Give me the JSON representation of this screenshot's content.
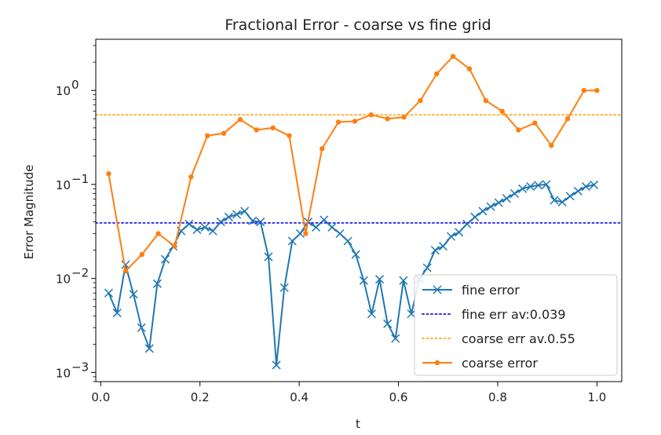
{
  "chart_data": {
    "type": "line",
    "title": "Fractional Error - coarse vs fine grid",
    "xlabel": "t",
    "ylabel": "Error Magnitude",
    "xlim": [
      -0.01,
      1.05
    ],
    "ylim": [
      0.0008,
      3.5
    ],
    "yscale": "log",
    "x_ticks": [
      0.0,
      0.2,
      0.4,
      0.6,
      0.8,
      1.0
    ],
    "x_tick_labels": [
      "0.0",
      "0.2",
      "0.4",
      "0.6",
      "0.8",
      "1.0"
    ],
    "y_ticks": [
      0.001,
      0.01,
      0.1,
      1
    ],
    "y_tick_labels": [
      "10",
      "10",
      "10",
      "10"
    ],
    "y_tick_exponents": [
      "−3",
      "−2",
      "−1",
      "0"
    ],
    "grid": false,
    "legend_position": "lower-right",
    "series": [
      {
        "name": "fine error",
        "color": "#1f77b4",
        "marker": "x",
        "linestyle": "solid",
        "x": [
          0.016,
          0.033,
          0.05,
          0.066,
          0.082,
          0.098,
          0.114,
          0.13,
          0.146,
          0.162,
          0.178,
          0.194,
          0.21,
          0.226,
          0.242,
          0.258,
          0.274,
          0.29,
          0.306,
          0.322,
          0.338,
          0.354,
          0.37,
          0.386,
          0.402,
          0.418,
          0.434,
          0.45,
          0.466,
          0.482,
          0.498,
          0.514,
          0.53,
          0.546,
          0.562,
          0.578,
          0.594,
          0.61,
          0.626,
          0.642,
          0.658,
          0.674,
          0.69,
          0.706,
          0.722,
          0.738,
          0.754,
          0.77,
          0.786,
          0.802,
          0.818,
          0.834,
          0.85,
          0.866,
          0.882,
          0.898,
          0.914,
          0.93,
          0.946,
          0.962,
          0.978,
          0.994
        ],
        "values": [
          0.007,
          0.0043,
          0.014,
          0.0068,
          0.003,
          0.0018,
          0.0088,
          0.016,
          0.022,
          0.032,
          0.038,
          0.033,
          0.035,
          0.032,
          0.04,
          0.045,
          0.048,
          0.052,
          0.041,
          0.04,
          0.017,
          0.0012,
          0.008,
          0.025,
          0.03,
          0.04,
          0.035,
          0.042,
          0.035,
          0.03,
          0.025,
          0.018,
          0.0095,
          0.0042,
          0.0098,
          0.0033,
          0.0023,
          0.0095,
          0.0042,
          0.0098,
          0.013,
          0.02,
          0.022,
          0.028,
          0.031,
          0.038,
          0.045,
          0.052,
          0.058,
          0.064,
          0.071,
          0.08,
          0.09,
          0.095,
          0.098,
          0.1,
          0.068,
          0.065,
          0.075,
          0.085,
          0.095,
          0.099
        ]
      },
      {
        "name": "fine err av:0.039",
        "color": "#3333ee",
        "linestyle": "dotted",
        "constant": 0.039
      },
      {
        "name": "coarse err av.0.55",
        "color": "#ffb13d",
        "linestyle": "dotted",
        "constant": 0.55
      },
      {
        "name": "coarse error",
        "color": "#ff7f0e",
        "marker": "o",
        "linestyle": "solid",
        "x": [
          0.016,
          0.05,
          0.083,
          0.116,
          0.149,
          0.182,
          0.215,
          0.248,
          0.281,
          0.314,
          0.347,
          0.38,
          0.413,
          0.446,
          0.479,
          0.512,
          0.545,
          0.578,
          0.611,
          0.644,
          0.677,
          0.71,
          0.743,
          0.776,
          0.809,
          0.842,
          0.875,
          0.908,
          0.941,
          0.974,
          1.0
        ],
        "values": [
          0.13,
          0.012,
          0.018,
          0.03,
          0.022,
          0.12,
          0.33,
          0.35,
          0.49,
          0.38,
          0.4,
          0.33,
          0.03,
          0.24,
          0.46,
          0.47,
          0.55,
          0.5,
          0.52,
          0.78,
          1.5,
          2.3,
          1.7,
          0.78,
          0.6,
          0.38,
          0.45,
          0.26,
          0.5,
          1.0,
          1.0
        ]
      }
    ]
  }
}
